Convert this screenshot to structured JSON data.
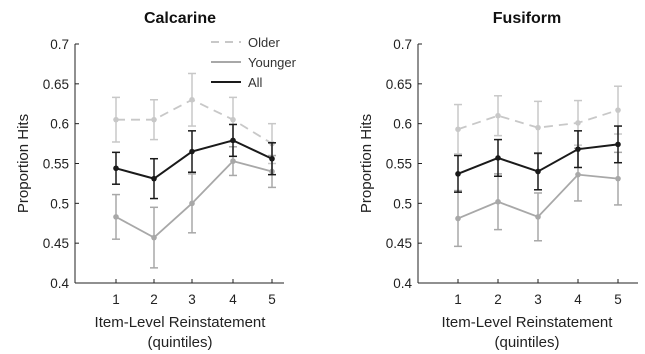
{
  "chart_data": [
    {
      "type": "line",
      "title": "Calcarine",
      "xlabel": "Item-Level Reinstatement",
      "xlabel2": "(quintiles)",
      "ylabel": "Proportion Hits",
      "ylim": [
        0.4,
        0.7
      ],
      "yticks": [
        "0.4",
        "0.45",
        "0.5",
        "0.55",
        "0.6",
        "0.65",
        "0.7"
      ],
      "x": [
        1,
        2,
        3,
        4,
        5
      ],
      "xticks": [
        "1",
        "2",
        "3",
        "4",
        "5"
      ],
      "legend_position": "top-right",
      "grid": false,
      "series": [
        {
          "name": "Older",
          "style": "dashed",
          "color": "#c8c8c8",
          "values": [
            0.605,
            0.605,
            0.63,
            0.605,
            0.575
          ],
          "err": [
            0.028,
            0.025,
            0.033,
            0.028,
            0.025
          ]
        },
        {
          "name": "Younger",
          "style": "solid",
          "color": "#a8a8a8",
          "values": [
            0.483,
            0.457,
            0.5,
            0.553,
            0.54
          ],
          "err": [
            0.028,
            0.038,
            0.037,
            0.018,
            0.02
          ]
        },
        {
          "name": "All",
          "style": "solid",
          "color": "#1a1a1a",
          "values": [
            0.544,
            0.531,
            0.565,
            0.579,
            0.556
          ],
          "err": [
            0.02,
            0.025,
            0.026,
            0.02,
            0.02
          ]
        }
      ]
    },
    {
      "type": "line",
      "title": "Fusiform",
      "xlabel": "Item-Level Reinstatement",
      "xlabel2": "(quintiles)",
      "ylabel": "Proportion Hits",
      "ylim": [
        0.4,
        0.7
      ],
      "yticks": [
        "0.4",
        "0.45",
        "0.5",
        "0.55",
        "0.6",
        "0.65",
        "0.7"
      ],
      "x": [
        1,
        2,
        3,
        4,
        5
      ],
      "xticks": [
        "1",
        "2",
        "3",
        "4",
        "5"
      ],
      "grid": false,
      "series": [
        {
          "name": "Older",
          "style": "dashed",
          "color": "#c8c8c8",
          "values": [
            0.593,
            0.61,
            0.595,
            0.601,
            0.617
          ],
          "err": [
            0.031,
            0.025,
            0.033,
            0.028,
            0.03
          ]
        },
        {
          "name": "Younger",
          "style": "solid",
          "color": "#a8a8a8",
          "values": [
            0.481,
            0.502,
            0.483,
            0.536,
            0.531
          ],
          "err": [
            0.035,
            0.035,
            0.03,
            0.033,
            0.033
          ]
        },
        {
          "name": "All",
          "style": "solid",
          "color": "#1a1a1a",
          "values": [
            0.537,
            0.557,
            0.54,
            0.568,
            0.574
          ],
          "err": [
            0.023,
            0.023,
            0.023,
            0.023,
            0.023
          ]
        }
      ]
    }
  ]
}
